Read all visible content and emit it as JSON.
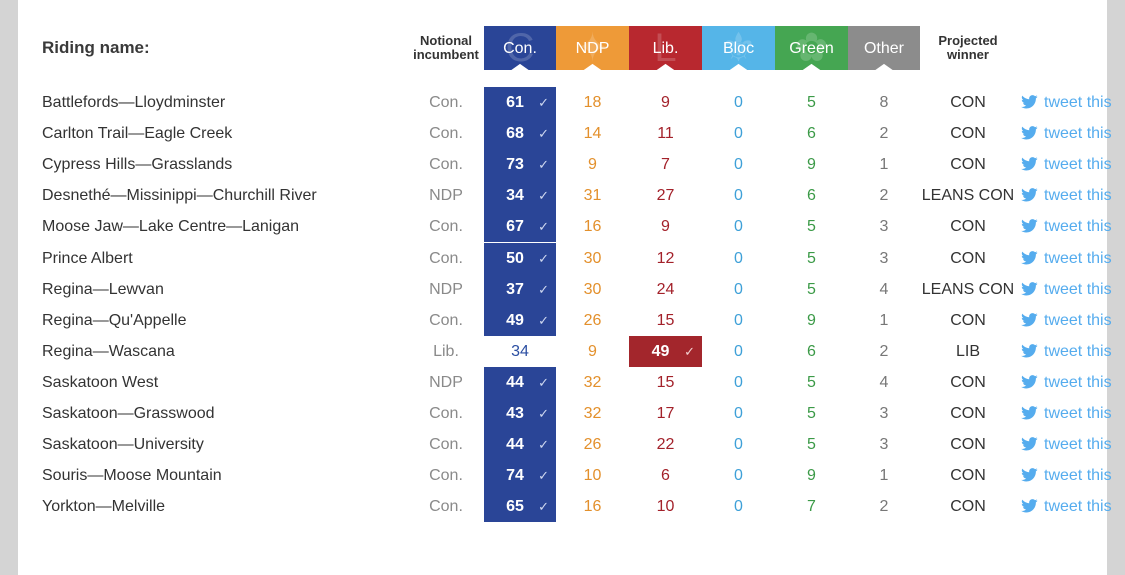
{
  "header": {
    "riding_label": "Riding name:",
    "incumbent_label_1": "Notional",
    "incumbent_label_2": "incumbent",
    "winner_label_1": "Projected",
    "winner_label_2": "winner"
  },
  "parties": [
    {
      "key": "con",
      "label": "Con.",
      "color": "#2a4597",
      "logo": "conservative-logo-icon"
    },
    {
      "key": "ndp",
      "label": "NDP",
      "color": "#ee9a38",
      "logo": "maple-leaf-icon"
    },
    {
      "key": "lib",
      "label": "Lib.",
      "color": "#b8282f",
      "logo": "liberal-logo-icon"
    },
    {
      "key": "bloc",
      "label": "Bloc",
      "color": "#55b5e8",
      "logo": "fleur-de-lis-icon"
    },
    {
      "key": "green",
      "label": "Green",
      "color": "#45a652",
      "logo": "green-flower-icon"
    },
    {
      "key": "other",
      "label": "Other",
      "color": "#8c8c8c",
      "logo": ""
    }
  ],
  "tweet_label": "tweet this",
  "check_mark": "✓",
  "rows": [
    {
      "riding": "Battlefords—Lloydminster",
      "inc": "Con.",
      "con": "61",
      "ndp": "18",
      "lib": "9",
      "bloc": "0",
      "green": "5",
      "other": "8",
      "winner": "CON",
      "win": "con"
    },
    {
      "riding": "Carlton Trail—Eagle Creek",
      "inc": "Con.",
      "con": "68",
      "ndp": "14",
      "lib": "11",
      "bloc": "0",
      "green": "6",
      "other": "2",
      "winner": "CON",
      "win": "con"
    },
    {
      "riding": "Cypress Hills—Grasslands",
      "inc": "Con.",
      "con": "73",
      "ndp": "9",
      "lib": "7",
      "bloc": "0",
      "green": "9",
      "other": "1",
      "winner": "CON",
      "win": "con"
    },
    {
      "riding": "Desnethé—Missinippi—Churchill River",
      "inc": "NDP",
      "con": "34",
      "ndp": "31",
      "lib": "27",
      "bloc": "0",
      "green": "6",
      "other": "2",
      "winner": "LEANS CON",
      "win": "con"
    },
    {
      "riding": "Moose Jaw—Lake Centre—Lanigan",
      "inc": "Con.",
      "con": "67",
      "ndp": "16",
      "lib": "9",
      "bloc": "0",
      "green": "5",
      "other": "3",
      "winner": "CON",
      "win": "con"
    },
    {
      "riding": "Prince Albert",
      "inc": "Con.",
      "con": "50",
      "ndp": "30",
      "lib": "12",
      "bloc": "0",
      "green": "5",
      "other": "3",
      "winner": "CON",
      "win": "con"
    },
    {
      "riding": "Regina—Lewvan",
      "inc": "NDP",
      "con": "37",
      "ndp": "30",
      "lib": "24",
      "bloc": "0",
      "green": "5",
      "other": "4",
      "winner": "LEANS CON",
      "win": "con"
    },
    {
      "riding": "Regina—Qu'Appelle",
      "inc": "Con.",
      "con": "49",
      "ndp": "26",
      "lib": "15",
      "bloc": "0",
      "green": "9",
      "other": "1",
      "winner": "CON",
      "win": "con"
    },
    {
      "riding": "Regina—Wascana",
      "inc": "Lib.",
      "con": "34",
      "ndp": "9",
      "lib": "49",
      "bloc": "0",
      "green": "6",
      "other": "2",
      "winner": "LIB",
      "win": "lib"
    },
    {
      "riding": "Saskatoon West",
      "inc": "NDP",
      "con": "44",
      "ndp": "32",
      "lib": "15",
      "bloc": "0",
      "green": "5",
      "other": "4",
      "winner": "CON",
      "win": "con"
    },
    {
      "riding": "Saskatoon—Grasswood",
      "inc": "Con.",
      "con": "43",
      "ndp": "32",
      "lib": "17",
      "bloc": "0",
      "green": "5",
      "other": "3",
      "winner": "CON",
      "win": "con"
    },
    {
      "riding": "Saskatoon—University",
      "inc": "Con.",
      "con": "44",
      "ndp": "26",
      "lib": "22",
      "bloc": "0",
      "green": "5",
      "other": "3",
      "winner": "CON",
      "win": "con"
    },
    {
      "riding": "Souris—Moose Mountain",
      "inc": "Con.",
      "con": "74",
      "ndp": "10",
      "lib": "6",
      "bloc": "0",
      "green": "9",
      "other": "1",
      "winner": "CON",
      "win": "con"
    },
    {
      "riding": "Yorkton—Melville",
      "inc": "Con.",
      "con": "65",
      "ndp": "16",
      "lib": "10",
      "bloc": "0",
      "green": "7",
      "other": "2",
      "winner": "CON",
      "win": "con"
    }
  ]
}
